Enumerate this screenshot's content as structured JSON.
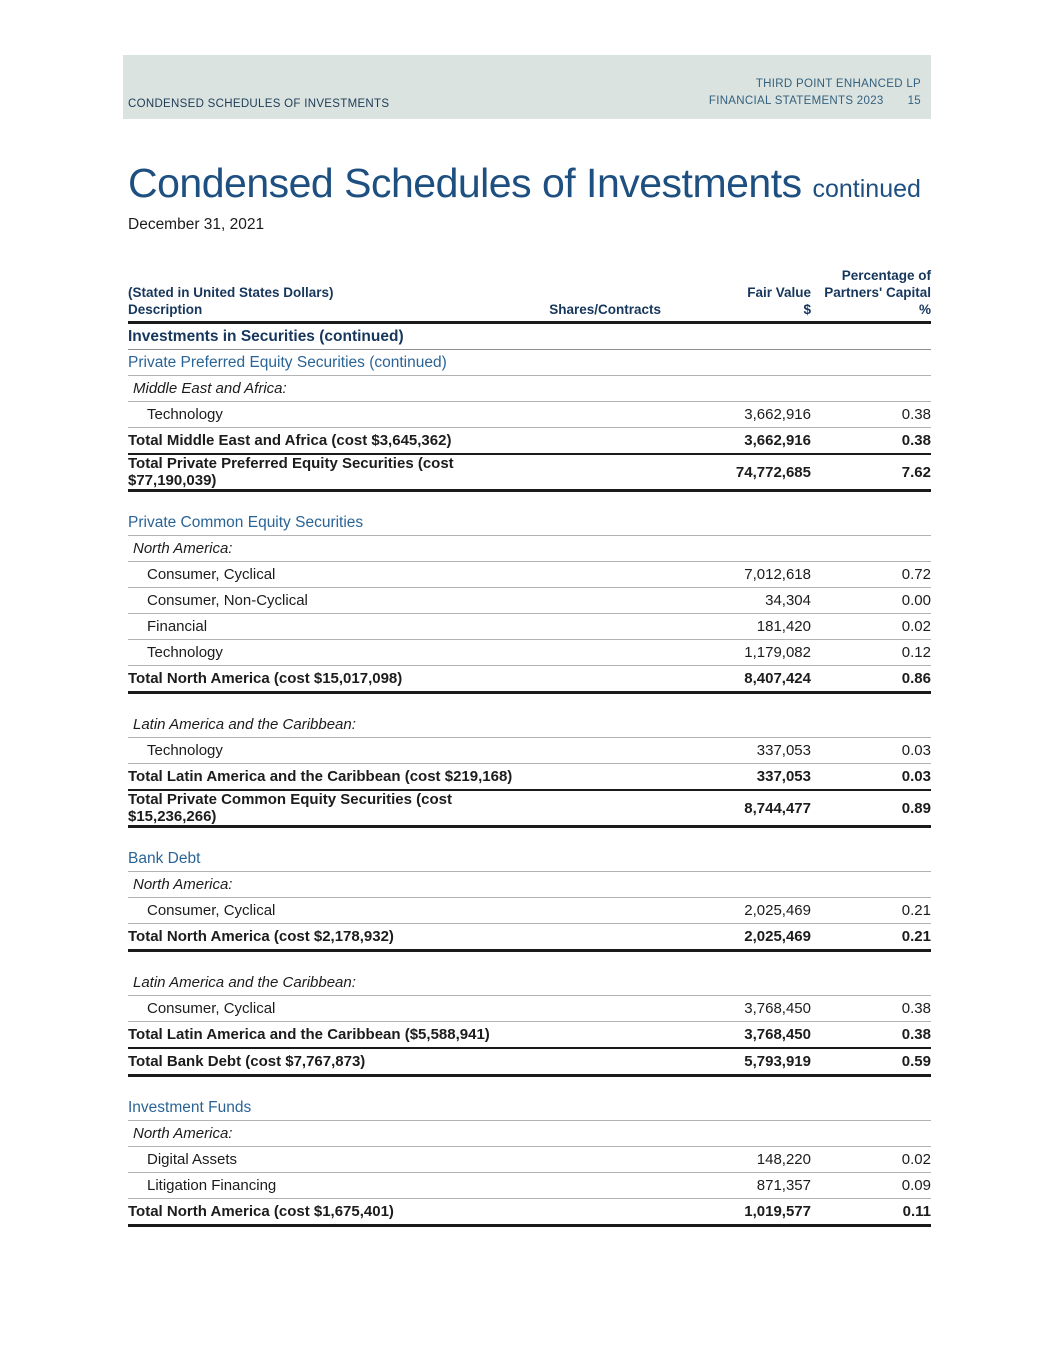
{
  "page": {
    "header_band": {
      "left": "CONDENSED SCHEDULES OF INVESTMENTS",
      "right_line1": "THIRD POINT ENHANCED LP",
      "right_line2": "FINANCIAL STATEMENTS 2023",
      "page_number": "15"
    },
    "title": "Condensed Schedules of Investments",
    "title_suffix": "continued",
    "date": "December 31, 2021"
  },
  "table": {
    "header": {
      "col1_line1": "(Stated in United States Dollars)",
      "col1_line2": "Description",
      "col2": "Shares/Contracts",
      "col3_line1": "Fair Value",
      "col3_line2": "$",
      "col4_line1": "Percentage of",
      "col4_line2": "Partners' Capital",
      "col4_line3": "%"
    },
    "rows": [
      {
        "type": "section-bold",
        "label": "Investments in Securities (continued)",
        "shares": "",
        "fair": "",
        "pct": ""
      },
      {
        "type": "section-blue",
        "label": "Private Preferred Equity Securities (continued)",
        "shares": "",
        "fair": "",
        "pct": ""
      },
      {
        "type": "region",
        "label": "Middle East and Africa:",
        "shares": "",
        "fair": "",
        "pct": ""
      },
      {
        "type": "item",
        "label": "Technology",
        "shares": "",
        "fair": "3,662,916",
        "pct": "0.38"
      },
      {
        "type": "total",
        "label": "Total Middle East and Africa (cost $3,645,362)",
        "shares": "",
        "fair": "3,662,916",
        "pct": "0.38"
      },
      {
        "type": "grand",
        "label": "Total Private Preferred Equity Securities (cost $77,190,039)",
        "shares": "",
        "fair": "74,772,685",
        "pct": "7.62"
      },
      {
        "type": "spacer"
      },
      {
        "type": "section-blue",
        "label": "Private Common Equity Securities",
        "shares": "",
        "fair": "",
        "pct": ""
      },
      {
        "type": "region",
        "label": "North America:",
        "shares": "",
        "fair": "",
        "pct": ""
      },
      {
        "type": "item",
        "label": "Consumer, Cyclical",
        "shares": "",
        "fair": "7,012,618",
        "pct": "0.72"
      },
      {
        "type": "item",
        "label": "Consumer, Non-Cyclical",
        "shares": "",
        "fair": "34,304",
        "pct": "0.00"
      },
      {
        "type": "item",
        "label": "Financial",
        "shares": "",
        "fair": "181,420",
        "pct": "0.02"
      },
      {
        "type": "item",
        "label": "Technology",
        "shares": "",
        "fair": "1,179,082",
        "pct": "0.12"
      },
      {
        "type": "grand",
        "label": "Total North America (cost $15,017,098)",
        "shares": "",
        "fair": "8,407,424",
        "pct": "0.86"
      },
      {
        "type": "spacer"
      },
      {
        "type": "region",
        "label": "Latin America and the Caribbean:",
        "shares": "",
        "fair": "",
        "pct": ""
      },
      {
        "type": "item",
        "label": "Technology",
        "shares": "",
        "fair": "337,053",
        "pct": "0.03"
      },
      {
        "type": "total",
        "label": "Total Latin America and the Caribbean (cost $219,168)",
        "shares": "",
        "fair": "337,053",
        "pct": "0.03"
      },
      {
        "type": "grand",
        "label": "Total Private Common Equity Securities (cost $15,236,266)",
        "shares": "",
        "fair": "8,744,477",
        "pct": "0.89"
      },
      {
        "type": "spacer"
      },
      {
        "type": "section-blue",
        "label": "Bank Debt",
        "shares": "",
        "fair": "",
        "pct": ""
      },
      {
        "type": "region",
        "label": "North America:",
        "shares": "",
        "fair": "",
        "pct": ""
      },
      {
        "type": "item",
        "label": "Consumer, Cyclical",
        "shares": "",
        "fair": "2,025,469",
        "pct": "0.21"
      },
      {
        "type": "grand",
        "label": "Total North America (cost $2,178,932)",
        "shares": "",
        "fair": "2,025,469",
        "pct": "0.21"
      },
      {
        "type": "spacer"
      },
      {
        "type": "region",
        "label": "Latin America and the Caribbean:",
        "shares": "",
        "fair": "",
        "pct": ""
      },
      {
        "type": "item",
        "label": "Consumer, Cyclical",
        "shares": "",
        "fair": "3,768,450",
        "pct": "0.38"
      },
      {
        "type": "total",
        "label": "Total Latin America and the Caribbean ($5,588,941)",
        "shares": "",
        "fair": "3,768,450",
        "pct": "0.38"
      },
      {
        "type": "grand",
        "label": "Total Bank Debt (cost $7,767,873)",
        "shares": "",
        "fair": "5,793,919",
        "pct": "0.59"
      },
      {
        "type": "spacer"
      },
      {
        "type": "section-blue",
        "label": "Investment Funds",
        "shares": "",
        "fair": "",
        "pct": ""
      },
      {
        "type": "region",
        "label": "North America:",
        "shares": "",
        "fair": "",
        "pct": ""
      },
      {
        "type": "item",
        "label": "Digital Assets",
        "shares": "",
        "fair": "148,220",
        "pct": "0.02"
      },
      {
        "type": "item",
        "label": "Litigation Financing",
        "shares": "",
        "fair": "871,357",
        "pct": "0.09"
      },
      {
        "type": "grand",
        "label": "Total North America (cost $1,675,401)",
        "shares": "",
        "fair": "1,019,577",
        "pct": "0.11"
      }
    ]
  },
  "colors": {
    "band_bg": "#dbe3e0",
    "band_left_text": "#1c3c55",
    "band_right_text": "#33607e",
    "title_blue": "#1d4f80",
    "section_navy": "#16365c",
    "section_blue": "#2a6496",
    "text_dark": "#1c1c1c",
    "rule_light": "#b3b3b3",
    "rule_dark": "#1a1a1a"
  }
}
